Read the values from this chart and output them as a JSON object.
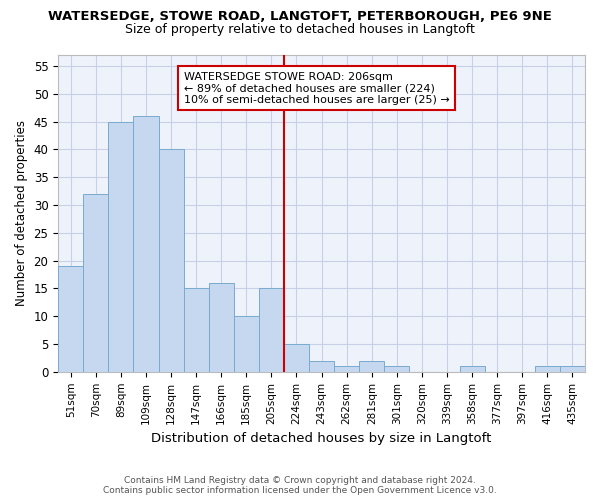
{
  "title_line1": "WATERSEDGE, STOWE ROAD, LANGTOFT, PETERBOROUGH, PE6 9NE",
  "title_line2": "Size of property relative to detached houses in Langtoft",
  "xlabel": "Distribution of detached houses by size in Langtoft",
  "ylabel": "Number of detached properties",
  "categories": [
    "51sqm",
    "70sqm",
    "89sqm",
    "109sqm",
    "128sqm",
    "147sqm",
    "166sqm",
    "185sqm",
    "205sqm",
    "224sqm",
    "243sqm",
    "262sqm",
    "281sqm",
    "301sqm",
    "320sqm",
    "339sqm",
    "358sqm",
    "377sqm",
    "397sqm",
    "416sqm",
    "435sqm"
  ],
  "values": [
    19,
    32,
    45,
    46,
    40,
    15,
    16,
    10,
    15,
    5,
    2,
    1,
    2,
    1,
    0,
    0,
    1,
    0,
    0,
    1,
    1
  ],
  "bar_color": "#c5d8f0",
  "bar_edge_color": "#7aaad0",
  "reference_line_x": 8.5,
  "reference_line_color": "#cc0000",
  "annotation_text": "WATERSEDGE STOWE ROAD: 206sqm\n← 89% of detached houses are smaller (224)\n10% of semi-detached houses are larger (25) →",
  "annotation_box_color": "#cc0000",
  "ylim": [
    0,
    57
  ],
  "yticks": [
    0,
    5,
    10,
    15,
    20,
    25,
    30,
    35,
    40,
    45,
    50,
    55
  ],
  "footer_line1": "Contains HM Land Registry data © Crown copyright and database right 2024.",
  "footer_line2": "Contains public sector information licensed under the Open Government Licence v3.0.",
  "bg_color": "#eef2fb",
  "grid_color": "#c8d0e8"
}
